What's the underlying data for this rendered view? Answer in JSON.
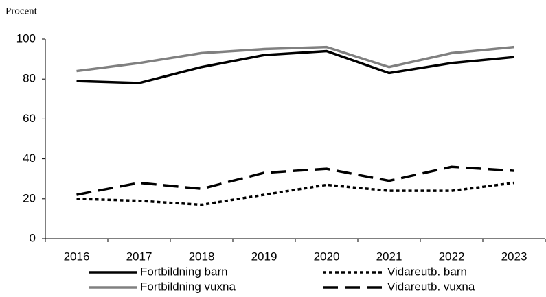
{
  "chart_data": {
    "type": "line",
    "y_label": "Procent",
    "categories": [
      "2016",
      "2017",
      "2018",
      "2019",
      "2020",
      "2021",
      "2022",
      "2023"
    ],
    "series": [
      {
        "name": "Fortbildning barn",
        "color": "#000000",
        "style": "solid",
        "values": [
          79,
          78,
          86,
          92,
          94,
          83,
          88,
          91
        ]
      },
      {
        "name": "Vidareutb. barn",
        "color": "#000000",
        "style": "dotted",
        "values": [
          20,
          19,
          17,
          22,
          27,
          24,
          24,
          28
        ]
      },
      {
        "name": "Fortbildning vuxna",
        "color": "#808080",
        "style": "solid",
        "values": [
          84,
          88,
          93,
          95,
          96,
          86,
          93,
          96
        ]
      },
      {
        "name": "Vidareutb. vuxna",
        "color": "#000000",
        "style": "dashed",
        "values": [
          22,
          28,
          25,
          33,
          35,
          29,
          36,
          34
        ]
      }
    ],
    "ylim": [
      0,
      100
    ],
    "yticks": [
      0,
      20,
      40,
      60,
      80,
      100
    ],
    "grid": false,
    "legend": "bottom"
  }
}
